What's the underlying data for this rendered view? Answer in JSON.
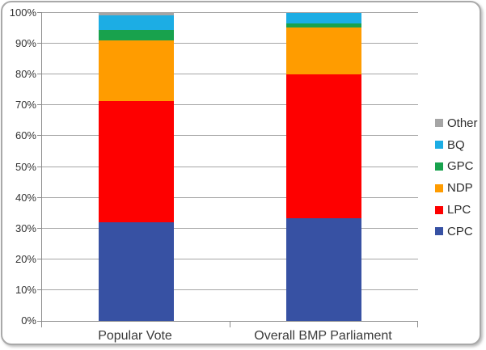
{
  "chart_data": {
    "type": "bar",
    "variant": "stacked-100-percent-column",
    "title": "",
    "categories": [
      "Popular Vote",
      "Overall BMP Parliament"
    ],
    "series": [
      {
        "name": "CPC",
        "color": "#3751a3",
        "values": [
          31.9,
          33.4
        ]
      },
      {
        "name": "LPC",
        "color": "#fe0000",
        "values": [
          39.5,
          46.7
        ]
      },
      {
        "name": "NDP",
        "color": "#ff9c00",
        "values": [
          19.7,
          15.1
        ]
      },
      {
        "name": "GPC",
        "color": "#18a24d",
        "values": [
          3.4,
          1.5
        ]
      },
      {
        "name": "BQ",
        "color": "#1cade4",
        "values": [
          4.7,
          3.3
        ]
      },
      {
        "name": "Other",
        "color": "#a5a5a5",
        "values": [
          0.8,
          0.0
        ]
      }
    ],
    "legend_order": [
      "Other",
      "BQ",
      "GPC",
      "NDP",
      "LPC",
      "CPC"
    ],
    "legend_position": "right",
    "y_ticks": [
      "0%",
      "10%",
      "20%",
      "30%",
      "40%",
      "50%",
      "60%",
      "70%",
      "80%",
      "90%",
      "100%"
    ],
    "ylim": [
      0,
      100
    ],
    "grid": true
  }
}
